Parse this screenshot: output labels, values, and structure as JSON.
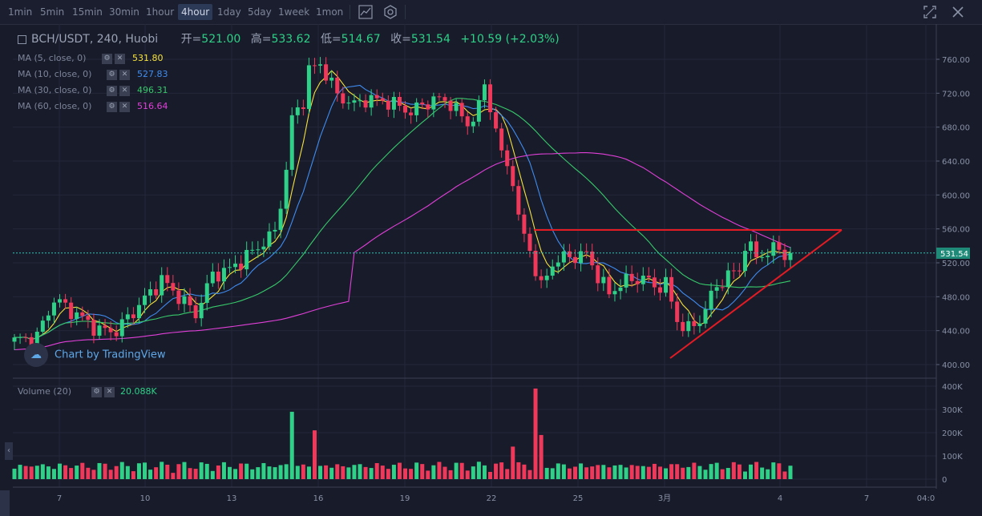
{
  "toolbar": {
    "intervals": [
      "1min",
      "5min",
      "15min",
      "30min",
      "1hour",
      "4hour",
      "1day",
      "5day",
      "1week",
      "1mon"
    ],
    "active_interval": "4hour",
    "icons": [
      "indicator-icon",
      "settings-icon",
      "fullscreen-icon",
      "close-icon"
    ]
  },
  "legend": {
    "symbol": "BCH/USDT, 240, Huobi",
    "open_label": "开=",
    "open": "521.00",
    "high_label": "高=",
    "high": "533.62",
    "low_label": "低=",
    "low": "514.67",
    "close_label": "收=",
    "close": "531.54",
    "change": "+10.59 (+2.03%)"
  },
  "ma": [
    {
      "label": "MA (5, close, 0)",
      "value": "531.80",
      "color": "#f5e23a"
    },
    {
      "label": "MA (10, close, 0)",
      "value": "527.83",
      "color": "#3f8cf0"
    },
    {
      "label": "MA (30, close, 0)",
      "value": "496.31",
      "color": "#37c96a"
    },
    {
      "label": "MA (60, close, 0)",
      "value": "516.64",
      "color": "#e040d8"
    }
  ],
  "volume": {
    "label": "Volume (20)",
    "value": "20.088K"
  },
  "watermark": "Chart by TradingView",
  "chart_data": {
    "type": "candlestick",
    "y_ticks": [
      400,
      440,
      480,
      520,
      560,
      600,
      640,
      680,
      720,
      760
    ],
    "ylim": [
      391,
      781
    ],
    "current_price": "531.54",
    "volume_ticks": [
      "0",
      "100K",
      "200K",
      "300K",
      "400K"
    ],
    "volume_ylim": [
      0,
      400000
    ],
    "x_ticks": [
      "7",
      "10",
      "13",
      "16",
      "19",
      "22",
      "25",
      "3月",
      "4",
      "7",
      "04:0"
    ],
    "colors": {
      "up": "#2ed187",
      "down": "#f0395a"
    }
  }
}
